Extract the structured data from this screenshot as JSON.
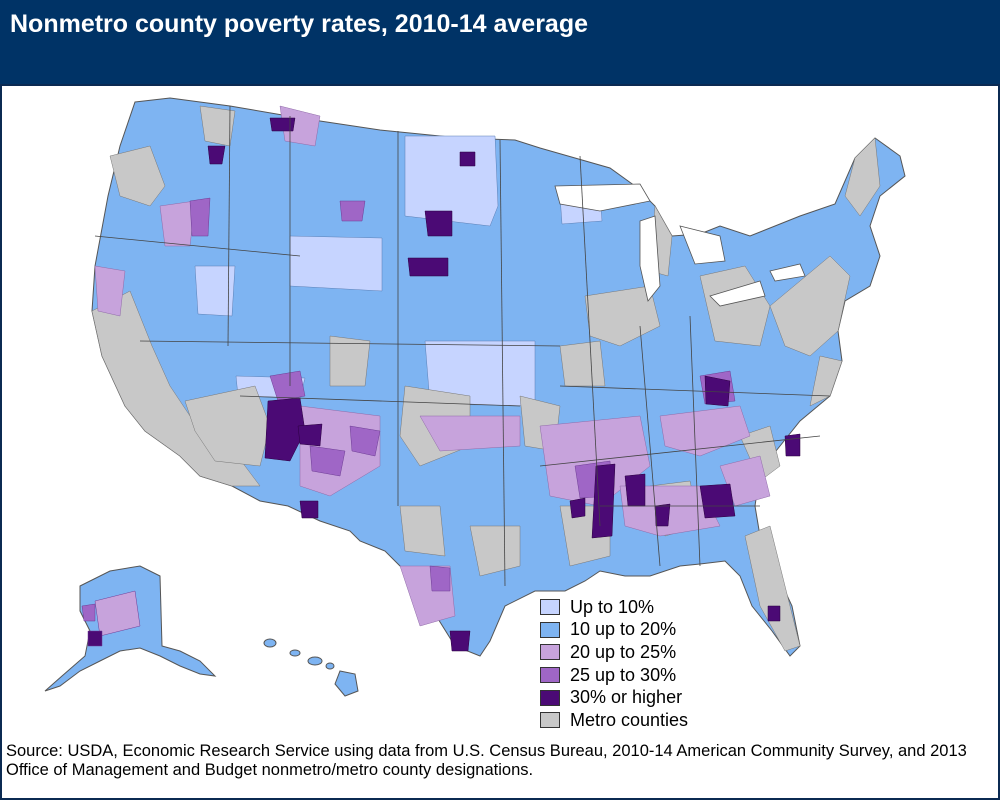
{
  "header": {
    "title": "Nonmetro county poverty rates, 2010-14 average",
    "background": "#003366"
  },
  "legend": {
    "items": [
      {
        "label": "Up to 10%",
        "color": "#c6d4ff"
      },
      {
        "label": "10 up to 20%",
        "color": "#7eb4f2"
      },
      {
        "label": "20 up to 25%",
        "color": "#c7a3dc"
      },
      {
        "label": "25 up to 30%",
        "color": "#9f66c6"
      },
      {
        "label": "30% or higher",
        "color": "#4b0a75"
      },
      {
        "label": "Metro counties",
        "color": "#c8c8c8"
      }
    ]
  },
  "source": "Source: USDA, Economic Research Service using data from U.S. Census Bureau, 2010-14 American Community Survey, and 2013 Office of Management and Budget nonmetro/metro county designations."
}
